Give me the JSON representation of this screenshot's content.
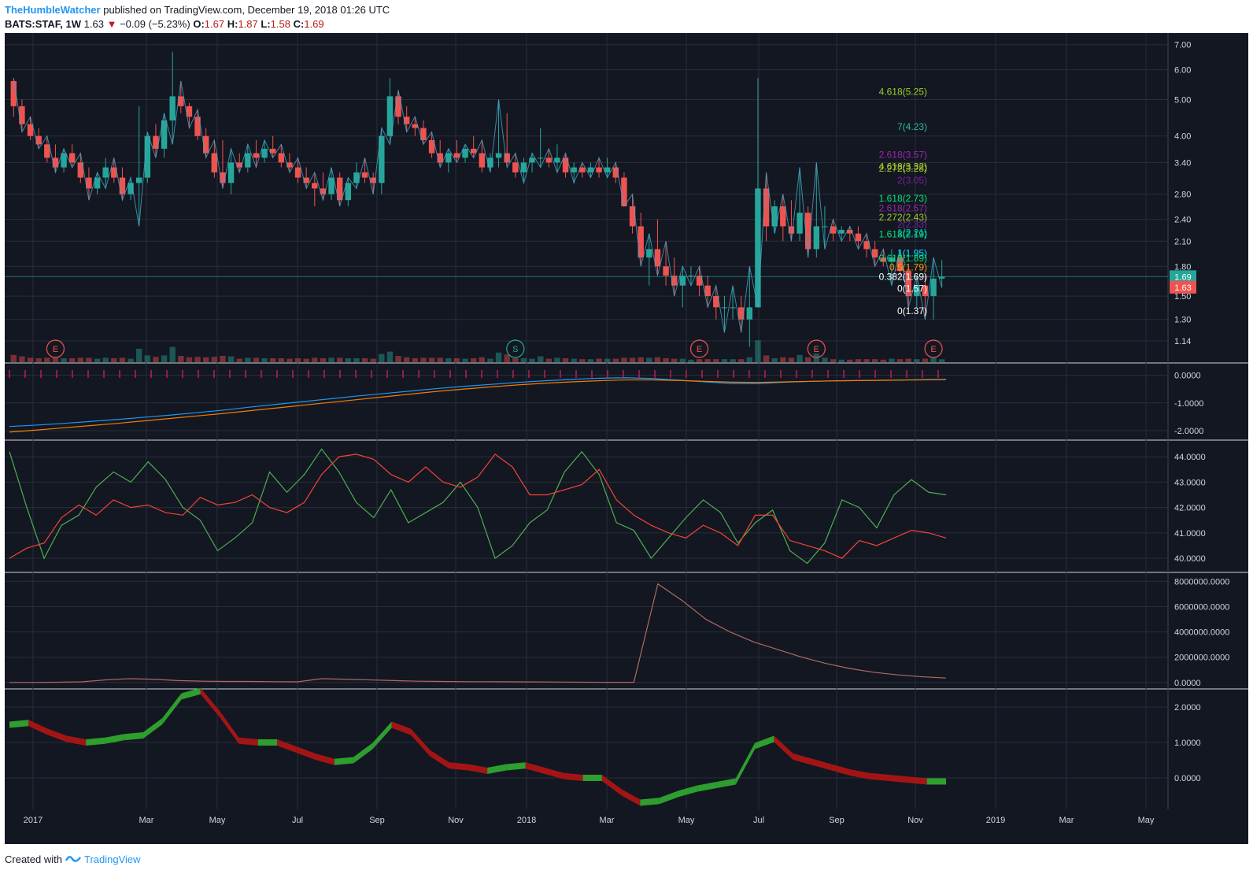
{
  "header": {
    "author": "TheHumbleWatcher",
    "published": "published on TradingView.com, December 19, 2018 01:26 UTC",
    "symbol": "BATS:STAF, 1W",
    "last": "1.63",
    "arrow": "▼",
    "change": "−0.09 (−5.23%)",
    "o_label": "O:",
    "o": "1.67",
    "h_label": "H:",
    "h": "1.87",
    "l_label": "L:",
    "l": "1.58",
    "c_label": "C:",
    "c": "1.69"
  },
  "footer": {
    "created_with": "Created with",
    "brand": "TradingView"
  },
  "colors": {
    "background": "#131722",
    "grid": "#2a2e39",
    "axis_text": "#d1d4dc",
    "up": "#26a69a",
    "down": "#ef5350",
    "zigzag": "#4aa3c5",
    "badge_up": "#26a69a",
    "badge_down": "#ef5350"
  },
  "chart_data": [
    {
      "type": "candlestick",
      "symbol": "BATS:STAF",
      "interval": "1W",
      "y_scale": "log",
      "ylim": [
        1.03,
        7.3
      ],
      "y_ticks": [
        "7.00",
        "6.00",
        "5.00",
        "4.00",
        "3.40",
        "2.80",
        "2.40",
        "2.10",
        "1.80",
        "1.50",
        "1.30",
        "1.14"
      ],
      "x_ticks": [
        "2017",
        "Mar",
        "May",
        "Jul",
        "Sep",
        "Nov",
        "2018",
        "Mar",
        "May",
        "Jul",
        "Sep",
        "Nov",
        "2019",
        "Mar",
        "May"
      ],
      "price_labels": [
        {
          "value": "1.69",
          "color": "#26a69a"
        },
        {
          "value": "1.63",
          "color": "#ef5350"
        }
      ],
      "ohlc": [
        [
          5.6,
          5.7,
          4.5,
          4.8
        ],
        [
          4.8,
          5.0,
          4.1,
          4.3
        ],
        [
          4.3,
          4.5,
          3.9,
          4.0
        ],
        [
          4.0,
          4.2,
          3.7,
          3.8
        ],
        [
          3.8,
          4.0,
          3.4,
          3.5
        ],
        [
          3.5,
          3.8,
          3.2,
          3.3
        ],
        [
          3.3,
          3.7,
          3.2,
          3.6
        ],
        [
          3.6,
          3.8,
          3.3,
          3.4
        ],
        [
          3.4,
          3.6,
          3.0,
          3.1
        ],
        [
          3.1,
          3.3,
          2.7,
          2.9
        ],
        [
          2.9,
          3.2,
          2.8,
          3.1
        ],
        [
          3.1,
          3.5,
          2.9,
          3.3
        ],
        [
          3.3,
          3.5,
          3.0,
          3.1
        ],
        [
          3.1,
          3.3,
          2.7,
          2.8
        ],
        [
          2.8,
          3.1,
          2.7,
          3.0
        ],
        [
          3.0,
          4.8,
          2.3,
          3.1
        ],
        [
          3.1,
          4.1,
          3.0,
          4.0
        ],
        [
          4.0,
          4.3,
          3.5,
          3.7
        ],
        [
          3.7,
          4.6,
          3.5,
          4.4
        ],
        [
          4.4,
          6.7,
          3.8,
          5.1
        ],
        [
          5.1,
          5.6,
          4.6,
          4.8
        ],
        [
          4.8,
          4.9,
          4.2,
          4.5
        ],
        [
          4.5,
          4.7,
          3.9,
          4.0
        ],
        [
          4.0,
          4.2,
          3.5,
          3.6
        ],
        [
          3.6,
          3.9,
          3.1,
          3.2
        ],
        [
          3.2,
          3.9,
          2.9,
          3.0
        ],
        [
          3.0,
          3.7,
          2.8,
          3.4
        ],
        [
          3.4,
          3.6,
          3.2,
          3.3
        ],
        [
          3.3,
          3.8,
          3.2,
          3.6
        ],
        [
          3.6,
          3.9,
          3.3,
          3.5
        ],
        [
          3.5,
          3.9,
          3.4,
          3.7
        ],
        [
          3.7,
          4.0,
          3.5,
          3.6
        ],
        [
          3.6,
          3.8,
          3.3,
          3.4
        ],
        [
          3.4,
          3.6,
          3.2,
          3.3
        ],
        [
          3.3,
          3.5,
          3.0,
          3.1
        ],
        [
          3.1,
          3.3,
          2.9,
          3.0
        ],
        [
          3.0,
          3.2,
          2.6,
          2.9
        ],
        [
          2.9,
          3.2,
          2.7,
          2.8
        ],
        [
          2.8,
          3.3,
          2.7,
          3.1
        ],
        [
          3.1,
          3.2,
          2.6,
          2.7
        ],
        [
          2.7,
          3.1,
          2.6,
          3.0
        ],
        [
          3.0,
          3.4,
          2.9,
          3.2
        ],
        [
          3.2,
          3.5,
          3.0,
          3.1
        ],
        [
          3.1,
          3.2,
          2.8,
          3.0
        ],
        [
          3.0,
          4.2,
          2.8,
          4.0
        ],
        [
          4.0,
          5.7,
          3.8,
          5.1
        ],
        [
          5.1,
          5.3,
          4.3,
          4.5
        ],
        [
          4.5,
          4.8,
          4.1,
          4.3
        ],
        [
          4.3,
          4.5,
          4.0,
          4.2
        ],
        [
          4.2,
          4.4,
          3.8,
          3.9
        ],
        [
          3.9,
          4.1,
          3.5,
          3.6
        ],
        [
          3.6,
          3.9,
          3.3,
          3.4
        ],
        [
          3.4,
          3.7,
          3.2,
          3.6
        ],
        [
          3.6,
          3.9,
          3.4,
          3.5
        ],
        [
          3.5,
          3.8,
          3.4,
          3.7
        ],
        [
          3.7,
          4.0,
          3.5,
          3.6
        ],
        [
          3.6,
          3.9,
          3.2,
          3.3
        ],
        [
          3.3,
          3.6,
          3.2,
          3.5
        ],
        [
          3.5,
          5.0,
          3.3,
          3.6
        ],
        [
          3.6,
          4.6,
          3.3,
          3.4
        ],
        [
          3.4,
          3.6,
          3.1,
          3.2
        ],
        [
          3.2,
          3.5,
          3.0,
          3.4
        ],
        [
          3.4,
          3.6,
          3.2,
          3.5
        ],
        [
          3.5,
          4.2,
          3.3,
          3.5
        ],
        [
          3.5,
          3.7,
          3.3,
          3.4
        ],
        [
          3.4,
          3.8,
          3.2,
          3.5
        ],
        [
          3.5,
          3.6,
          3.1,
          3.2
        ],
        [
          3.2,
          3.4,
          3.0,
          3.3
        ],
        [
          3.3,
          3.4,
          3.1,
          3.2
        ],
        [
          3.2,
          3.4,
          3.1,
          3.3
        ],
        [
          3.3,
          3.5,
          3.1,
          3.2
        ],
        [
          3.2,
          3.5,
          3.1,
          3.3
        ],
        [
          3.3,
          3.4,
          3.0,
          3.1
        ],
        [
          3.1,
          3.2,
          2.6,
          2.6
        ],
        [
          2.6,
          2.8,
          2.2,
          2.3
        ],
        [
          2.3,
          2.5,
          1.8,
          1.9
        ],
        [
          1.9,
          2.2,
          1.6,
          2.0
        ],
        [
          2.0,
          2.4,
          1.7,
          1.8
        ],
        [
          1.8,
          2.1,
          1.6,
          1.7
        ],
        [
          1.7,
          1.9,
          1.5,
          1.6
        ],
        [
          1.6,
          1.8,
          1.4,
          1.7
        ],
        [
          1.7,
          1.8,
          1.6,
          1.7
        ],
        [
          1.7,
          1.8,
          1.5,
          1.6
        ],
        [
          1.6,
          1.7,
          1.4,
          1.5
        ],
        [
          1.5,
          1.6,
          1.3,
          1.4
        ],
        [
          1.4,
          1.5,
          1.2,
          1.4
        ],
        [
          1.4,
          1.6,
          1.3,
          1.4
        ],
        [
          1.4,
          1.5,
          1.2,
          1.3
        ],
        [
          1.3,
          1.8,
          1.1,
          1.4
        ],
        [
          1.4,
          5.7,
          1.4,
          2.9
        ],
        [
          2.9,
          3.2,
          2.1,
          2.3
        ],
        [
          2.3,
          2.7,
          2.2,
          2.6
        ],
        [
          2.6,
          2.8,
          2.1,
          2.3
        ],
        [
          2.3,
          2.7,
          2.1,
          2.2
        ],
        [
          2.2,
          3.3,
          2.1,
          2.5
        ],
        [
          2.5,
          2.6,
          1.9,
          2.0
        ],
        [
          2.0,
          3.4,
          1.9,
          2.3
        ],
        [
          2.3,
          2.6,
          2.0,
          2.3
        ],
        [
          2.3,
          2.4,
          2.1,
          2.2
        ],
        [
          2.2,
          2.3,
          2.1,
          2.25
        ],
        [
          2.25,
          2.3,
          2.1,
          2.2
        ],
        [
          2.2,
          2.3,
          2.0,
          2.1
        ],
        [
          2.1,
          2.2,
          1.9,
          2.0
        ],
        [
          2.0,
          2.1,
          1.8,
          1.9
        ],
        [
          1.9,
          2.0,
          1.8,
          1.85
        ],
        [
          1.85,
          2.0,
          1.6,
          1.9
        ],
        [
          1.9,
          2.0,
          1.7,
          1.75
        ],
        [
          1.75,
          1.8,
          1.4,
          1.5
        ],
        [
          1.5,
          1.7,
          1.4,
          1.6
        ],
        [
          1.6,
          1.7,
          1.3,
          1.5
        ],
        [
          1.5,
          1.9,
          1.3,
          1.67
        ],
        [
          1.67,
          1.87,
          1.58,
          1.69
        ]
      ],
      "fib_levels": [
        {
          "label": "4.618(5.25)",
          "value": 5.25,
          "color": "#9ccc22"
        },
        {
          "label": "7(4.23)",
          "value": 4.23,
          "color": "#2fb89a"
        },
        {
          "label": "2.618(3.57)",
          "value": 3.57,
          "color": "#9c27b0"
        },
        {
          "label": "4.618(3.32)",
          "value": 3.32,
          "color": "#c0ca33"
        },
        {
          "label": "2.272(3.28)",
          "value": 3.28,
          "color": "#9ccc22"
        },
        {
          "label": "2(3.05)",
          "value": 3.05,
          "color": "#7b1fa2"
        },
        {
          "label": "1.618(2.73)",
          "value": 2.73,
          "color": "#00e676"
        },
        {
          "label": "2.618(2.57)",
          "value": 2.57,
          "color": "#9c27b0"
        },
        {
          "label": "2.272(2.43)",
          "value": 2.43,
          "color": "#9ccc22"
        },
        {
          "label": "2(2.33)",
          "value": 2.33,
          "color": "#7b1fa2"
        },
        {
          "label": "1(2.21)",
          "value": 2.21,
          "color": "#00bcd4"
        },
        {
          "label": "1.618(2.19)",
          "value": 2.19,
          "color": "#00e676"
        },
        {
          "label": "1(1.95)",
          "value": 1.95,
          "color": "#00e5ff"
        },
        {
          "label": "0.618(1.89)",
          "value": 1.89,
          "color": "#00e676"
        },
        {
          "label": "0.5(1.79)",
          "value": 1.79,
          "color": "#ff9800"
        },
        {
          "label": "0.382(1.69)",
          "value": 1.69,
          "color": "#ffffff"
        },
        {
          "label": "0(1.57)",
          "value": 1.57,
          "color": "#ffffff"
        },
        {
          "label": "0(1.37)",
          "value": 1.37,
          "color": "#ffffff"
        }
      ],
      "events": [
        {
          "label": "E",
          "x_week": 5
        },
        {
          "label": "S",
          "x_week": 60
        },
        {
          "label": "E",
          "x_week": 82
        },
        {
          "label": "E",
          "x_week": 96
        },
        {
          "label": "E",
          "x_week": 110
        }
      ]
    },
    {
      "type": "line",
      "name": "momentum pane",
      "ylim": [
        -2.2,
        0.3
      ],
      "y_ticks": [
        "0.0000",
        "-1.0000",
        "-2.0000"
      ],
      "series": [
        {
          "color": "#2196f3",
          "values": [
            -1.85,
            -1.8,
            -1.74,
            -1.67,
            -1.6,
            -1.52,
            -1.44,
            -1.35,
            -1.26,
            -1.15,
            -1.05,
            -0.95,
            -0.85,
            -0.75,
            -0.66,
            -0.57,
            -0.48,
            -0.4,
            -0.33,
            -0.26,
            -0.2,
            -0.15,
            -0.11,
            -0.09,
            -0.12,
            -0.18,
            -0.24,
            -0.3,
            -0.3,
            -0.25,
            -0.22,
            -0.2,
            -0.19,
            -0.18,
            -0.16,
            -0.15
          ]
        },
        {
          "color": "#f57c00",
          "values": [
            -2.05,
            -1.98,
            -1.9,
            -1.82,
            -1.74,
            -1.65,
            -1.56,
            -1.47,
            -1.38,
            -1.28,
            -1.18,
            -1.08,
            -0.98,
            -0.88,
            -0.78,
            -0.68,
            -0.58,
            -0.5,
            -0.42,
            -0.35,
            -0.29,
            -0.24,
            -0.2,
            -0.17,
            -0.17,
            -0.19,
            -0.22,
            -0.25,
            -0.26,
            -0.24,
            -0.22,
            -0.2,
            -0.19,
            -0.18,
            -0.17,
            -0.16
          ]
        }
      ]
    },
    {
      "type": "line",
      "name": "DMI pane",
      "ylim": [
        39.6,
        44.5
      ],
      "y_ticks": [
        "44.0000",
        "43.0000",
        "42.0000",
        "41.0000",
        "40.0000"
      ],
      "series": [
        {
          "color": "#4caf50",
          "values": [
            44.2,
            42.0,
            40.0,
            41.3,
            41.7,
            42.8,
            43.4,
            43.0,
            43.8,
            43.1,
            42.0,
            41.5,
            40.3,
            40.8,
            41.4,
            43.4,
            42.6,
            43.3,
            44.3,
            43.4,
            42.2,
            41.6,
            42.7,
            41.4,
            41.8,
            42.2,
            43.0,
            42.0,
            40.0,
            40.5,
            41.4,
            41.9,
            43.4,
            44.2,
            43.3,
            41.4,
            41.1,
            40.0,
            40.8,
            41.6,
            42.3,
            41.8,
            40.6,
            41.4,
            41.9,
            40.3,
            39.8,
            40.6,
            42.3,
            42.0,
            41.2,
            42.5,
            43.1,
            42.6,
            42.5
          ]
        },
        {
          "color": "#f44336",
          "values": [
            40.0,
            40.4,
            40.6,
            41.6,
            42.1,
            41.7,
            42.3,
            42.0,
            42.1,
            41.8,
            41.7,
            42.4,
            42.1,
            42.2,
            42.5,
            42.0,
            41.8,
            42.2,
            43.3,
            44.0,
            44.1,
            43.9,
            43.3,
            43.0,
            43.6,
            43.0,
            42.8,
            43.2,
            44.1,
            43.6,
            42.5,
            42.5,
            42.7,
            42.9,
            43.5,
            42.3,
            41.7,
            41.3,
            41.0,
            40.8,
            41.3,
            41.0,
            40.5,
            41.7,
            41.7,
            40.7,
            40.5,
            40.3,
            40.0,
            40.7,
            40.5,
            40.8,
            41.1,
            41.0,
            40.8
          ]
        }
      ]
    },
    {
      "type": "line",
      "name": "volume oscillator pane",
      "ylim": [
        -200000,
        8400000
      ],
      "y_ticks": [
        "8000000.0000",
        "6000000.0000",
        "4000000.0000",
        "2000000.0000",
        "0.0000"
      ],
      "series": [
        {
          "color": "#b06a60",
          "values": [
            0,
            0,
            20000,
            50000,
            200000,
            300000,
            250000,
            150000,
            100000,
            80000,
            80000,
            60000,
            50000,
            300000,
            250000,
            200000,
            150000,
            100000,
            80000,
            60000,
            60000,
            50000,
            40000,
            30000,
            20000,
            10000,
            10000,
            7800000,
            6500000,
            5000000,
            4000000,
            3200000,
            2600000,
            2000000,
            1500000,
            1100000,
            800000,
            600000,
            450000,
            350000
          ]
        }
      ]
    },
    {
      "type": "area",
      "name": "ribbon oscillator pane",
      "ylim": [
        -0.8,
        2.4
      ],
      "y_ticks": [
        "2.0000",
        "1.0000",
        "0.0000"
      ],
      "series": [
        {
          "color": "#4caf50",
          "values": [
            1.5,
            1.55,
            1.3,
            1.1,
            1.0,
            1.05,
            1.15,
            1.2,
            1.6,
            2.3,
            2.45,
            1.8,
            1.05,
            1.0,
            1.0,
            0.8,
            0.6,
            0.45,
            0.5,
            0.9,
            1.5,
            1.3,
            0.7,
            0.35,
            0.3,
            0.2,
            0.3,
            0.35,
            0.2,
            0.05,
            0.0,
            0.0,
            -0.4,
            -0.7,
            -0.65,
            -0.45,
            -0.3,
            -0.2,
            -0.1,
            0.9,
            1.1,
            0.6,
            0.45,
            0.3,
            0.15,
            0.05,
            0.0,
            -0.05,
            -0.1,
            -0.1
          ]
        }
      ]
    }
  ]
}
